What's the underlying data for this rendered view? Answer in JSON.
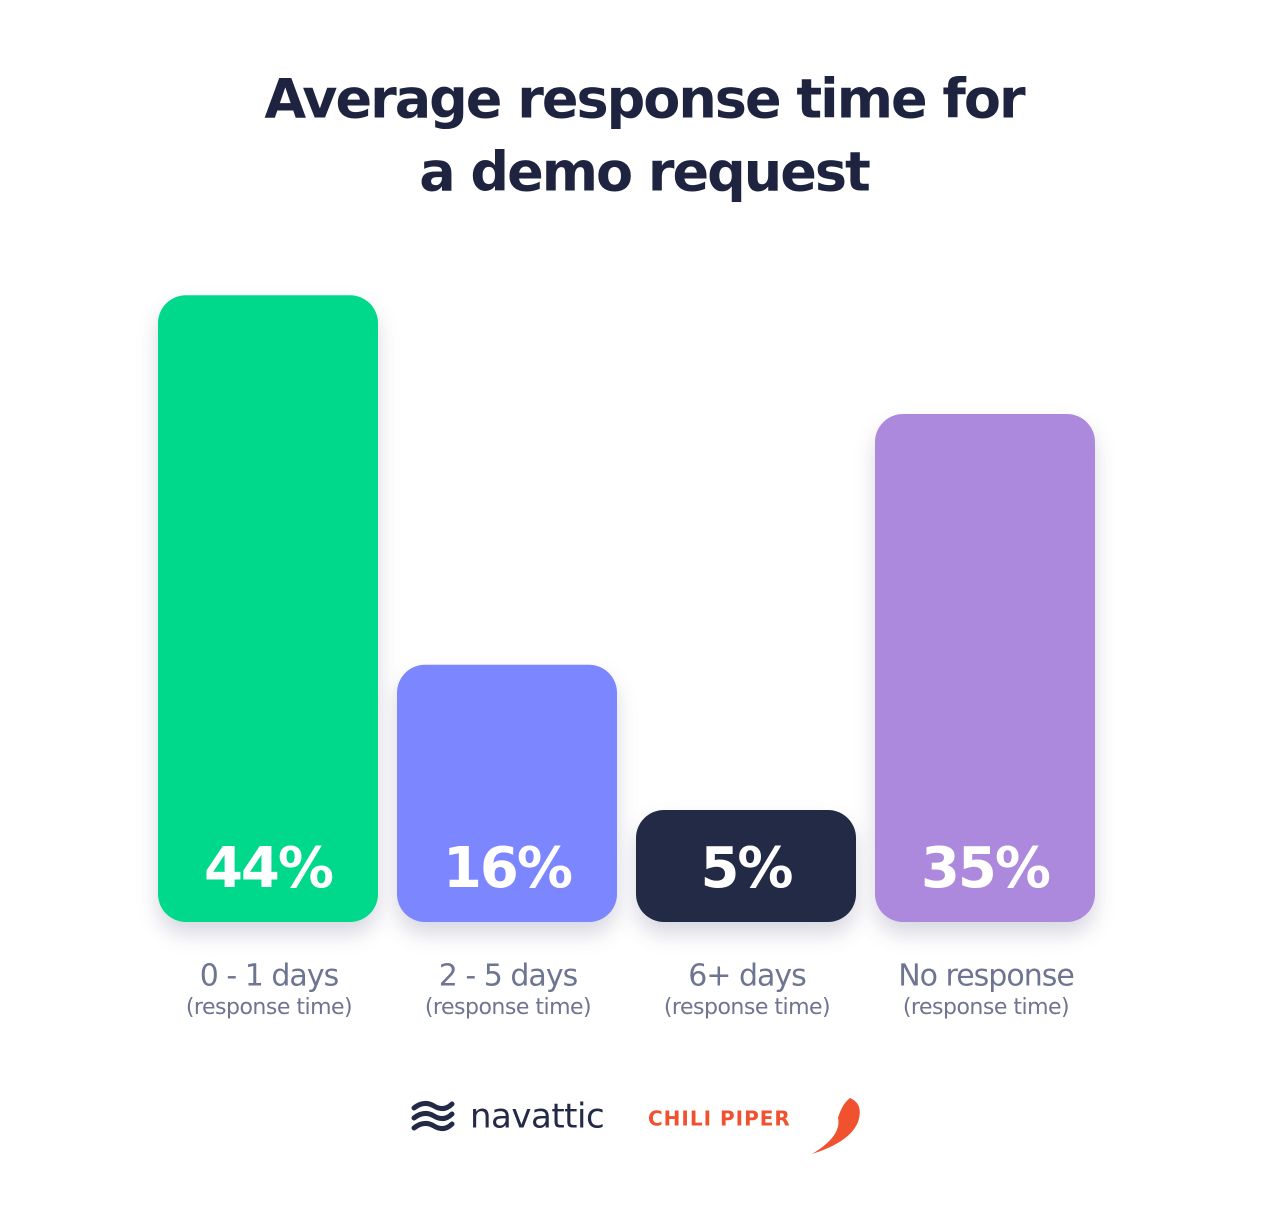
{
  "chart_data": {
    "type": "bar",
    "title": [
      "Average response time for",
      "a demo request"
    ],
    "categories": [
      "0 - 1 days",
      "2 - 5 days",
      "6+ days",
      "No response"
    ],
    "category_notes": [
      "(response time)",
      "(response time)",
      "(response time)",
      "(response time)"
    ],
    "values": [
      44,
      16,
      5,
      35
    ],
    "value_labels": [
      "44%",
      "16%",
      "5%",
      "35%"
    ],
    "colors": [
      "#00d98b",
      "#7b86ff",
      "#232a45",
      "#ad89de"
    ]
  },
  "footer": {
    "logos": [
      "navattic",
      "CHILI PIPER"
    ]
  }
}
